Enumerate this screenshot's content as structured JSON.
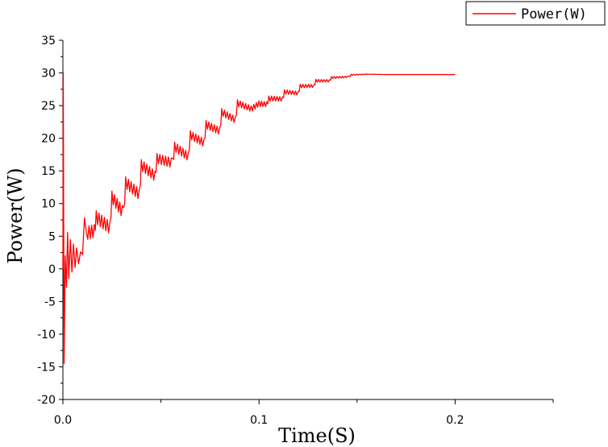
{
  "chart_data": {
    "type": "line",
    "xlabel": "Time(S)",
    "ylabel": "Power(W)",
    "xlim": [
      0,
      0.25
    ],
    "ylim": [
      -20,
      35
    ],
    "x_ticks": [
      "0.0",
      "0.1",
      "0.2"
    ],
    "y_ticks": [
      "-20",
      "-15",
      "-10",
      "-5",
      "0",
      "5",
      "10",
      "15",
      "20",
      "25",
      "30",
      "35"
    ],
    "legend_position": "top-right",
    "grid": false,
    "series": [
      {
        "name": "Power(W)",
        "color": "#ff0000",
        "description_points": [
          [
            0.0,
            0
          ],
          [
            0.0002,
            30
          ],
          [
            0.0006,
            -14.5
          ],
          [
            0.0012,
            2
          ],
          [
            0.0018,
            -2.8
          ],
          [
            0.0024,
            5.6
          ],
          [
            0.003,
            -1.5
          ],
          [
            0.0038,
            4.5
          ],
          [
            0.0046,
            -0.5
          ],
          [
            0.0054,
            3.8
          ],
          [
            0.0062,
            0.2
          ],
          [
            0.007,
            3.2
          ],
          [
            0.008,
            0.8
          ],
          [
            0.009,
            2.6
          ],
          [
            0.01,
            2.2
          ],
          [
            0.011,
            7.8
          ],
          [
            0.012,
            5.5
          ],
          [
            0.016,
            5.8
          ],
          [
            0.017,
            7.9
          ],
          [
            0.024,
            6.3
          ],
          [
            0.025,
            11.0
          ],
          [
            0.031,
            8.5
          ],
          [
            0.032,
            13.2
          ],
          [
            0.039,
            11.4
          ],
          [
            0.04,
            15.9
          ],
          [
            0.047,
            14.2
          ],
          [
            0.048,
            16.9
          ],
          [
            0.056,
            16.2
          ],
          [
            0.057,
            18.7
          ],
          [
            0.064,
            17.2
          ],
          [
            0.065,
            20.5
          ],
          [
            0.072,
            19.3
          ],
          [
            0.073,
            22.1
          ],
          [
            0.08,
            21.1
          ],
          [
            0.081,
            24.0
          ],
          [
            0.088,
            22.8
          ],
          [
            0.089,
            25.4
          ],
          [
            0.096,
            24.5
          ],
          [
            0.1,
            25.3
          ],
          [
            0.104,
            25.2
          ],
          [
            0.105,
            26.1
          ],
          [
            0.112,
            26.0
          ],
          [
            0.113,
            27.1
          ],
          [
            0.12,
            26.9
          ],
          [
            0.121,
            28.0
          ],
          [
            0.128,
            28.0
          ],
          [
            0.129,
            28.8
          ],
          [
            0.136,
            28.8
          ],
          [
            0.137,
            29.3
          ],
          [
            0.146,
            29.4
          ],
          [
            0.147,
            29.7
          ],
          [
            0.155,
            29.8
          ],
          [
            0.165,
            29.75
          ],
          [
            0.2,
            29.75
          ]
        ]
      }
    ]
  }
}
